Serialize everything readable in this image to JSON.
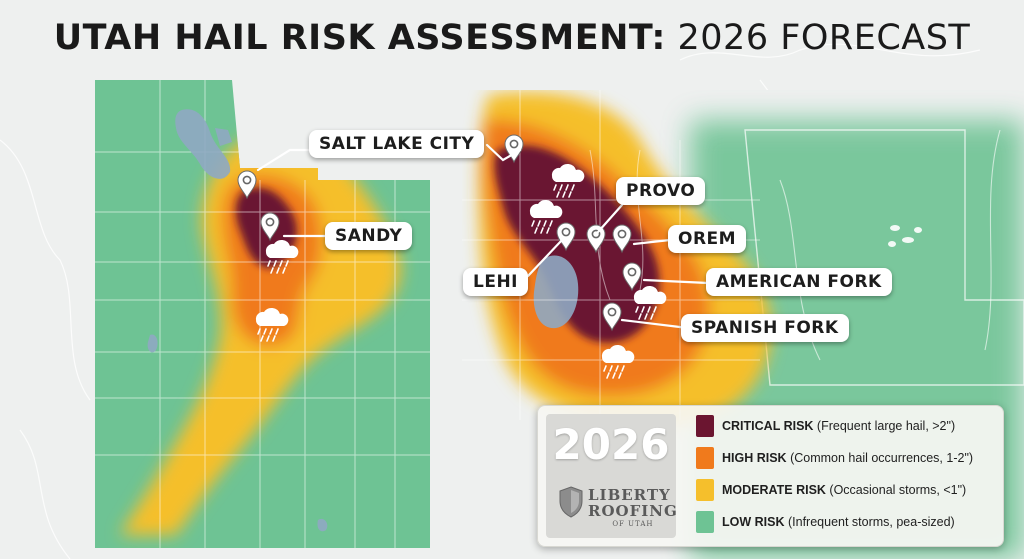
{
  "title": {
    "bold": "UTAH HAIL RISK ASSESSMENT:",
    "light": "2026 FORECAST"
  },
  "colors": {
    "critical": "#6b1530",
    "high": "#f07a1c",
    "moderate": "#f5bf2c",
    "low": "#6ec394",
    "background": "#eef0ef",
    "water": "#8fa9c2"
  },
  "cities": [
    {
      "id": "salt-lake-city",
      "label": "SALT LAKE CITY"
    },
    {
      "id": "sandy",
      "label": "SANDY"
    },
    {
      "id": "provo",
      "label": "PROVO"
    },
    {
      "id": "orem",
      "label": "OREM"
    },
    {
      "id": "lehi",
      "label": "LEHI"
    },
    {
      "id": "american-fork",
      "label": "AMERICAN FORK"
    },
    {
      "id": "spanish-fork",
      "label": "SPANISH FORK"
    }
  ],
  "legend": {
    "year": "2026",
    "brand": {
      "line1": "LIBERTY",
      "line2": "ROOFING",
      "line3": "OF UTAH"
    },
    "items": [
      {
        "name": "CRITICAL RISK",
        "desc": "(Frequent large hail, >2\")",
        "color": "#6b1530"
      },
      {
        "name": "HIGH RISK",
        "desc": "(Common hail occurrences, 1-2\")",
        "color": "#f07a1c"
      },
      {
        "name": "MODERATE RISK",
        "desc": "(Occasional storms, <1\")",
        "color": "#f5bf2c"
      },
      {
        "name": "LOW RISK",
        "desc": "(Infrequent storms, pea-sized)",
        "color": "#6ec394"
      }
    ]
  }
}
